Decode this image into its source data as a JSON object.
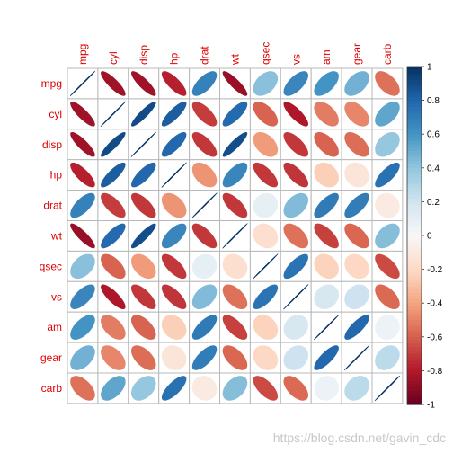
{
  "chart_data": {
    "type": "heatmap",
    "subtype": "correlation-matrix-ellipse",
    "variables": [
      "mpg",
      "cyl",
      "disp",
      "hp",
      "drat",
      "wt",
      "qsec",
      "vs",
      "am",
      "gear",
      "carb"
    ],
    "matrix": [
      [
        1.0,
        -0.85,
        -0.85,
        -0.78,
        0.68,
        -0.87,
        0.42,
        0.66,
        0.6,
        0.48,
        -0.55
      ],
      [
        -0.85,
        1.0,
        0.9,
        0.83,
        -0.7,
        0.78,
        -0.59,
        -0.81,
        -0.52,
        -0.49,
        0.53
      ],
      [
        -0.85,
        0.9,
        1.0,
        0.79,
        -0.71,
        0.89,
        -0.43,
        -0.71,
        -0.59,
        -0.56,
        0.39
      ],
      [
        -0.78,
        0.83,
        0.79,
        1.0,
        -0.45,
        0.66,
        -0.71,
        -0.72,
        -0.24,
        -0.13,
        0.75
      ],
      [
        0.68,
        -0.7,
        -0.71,
        -0.45,
        1.0,
        -0.71,
        0.09,
        0.44,
        0.71,
        0.7,
        -0.09
      ],
      [
        -0.87,
        0.78,
        0.89,
        0.66,
        -0.71,
        1.0,
        -0.17,
        -0.55,
        -0.69,
        -0.58,
        0.43
      ],
      [
        0.42,
        -0.59,
        -0.43,
        -0.71,
        0.09,
        -0.17,
        1.0,
        0.74,
        -0.23,
        -0.21,
        -0.66
      ],
      [
        0.66,
        -0.81,
        -0.71,
        -0.72,
        0.44,
        -0.55,
        0.74,
        1.0,
        0.17,
        0.21,
        -0.57
      ],
      [
        0.6,
        -0.52,
        -0.59,
        -0.24,
        0.71,
        -0.69,
        -0.23,
        0.17,
        1.0,
        0.79,
        0.06
      ],
      [
        0.48,
        -0.49,
        -0.56,
        -0.13,
        0.7,
        -0.58,
        -0.21,
        0.21,
        0.79,
        1.0,
        0.27
      ],
      [
        -0.55,
        0.53,
        0.39,
        0.75,
        -0.09,
        0.43,
        -0.66,
        -0.57,
        0.06,
        0.27,
        1.0
      ]
    ],
    "colorbar": {
      "ticks": [
        "1",
        "0.8",
        "0.6",
        "0.4",
        "0.2",
        "0",
        "-0.2",
        "-0.4",
        "-0.6",
        "-0.8",
        "-1"
      ],
      "range": [
        -1,
        1
      ]
    },
    "label_color": "#e00000",
    "colormap": [
      "#67001f",
      "#b2182b",
      "#d6604d",
      "#f4a582",
      "#fddbc7",
      "#f7f7f7",
      "#d1e5f0",
      "#92c5de",
      "#4393c3",
      "#2166ac",
      "#053061"
    ],
    "grid": true
  },
  "watermark": "https://blog.csdn.net/gavin_cdc"
}
